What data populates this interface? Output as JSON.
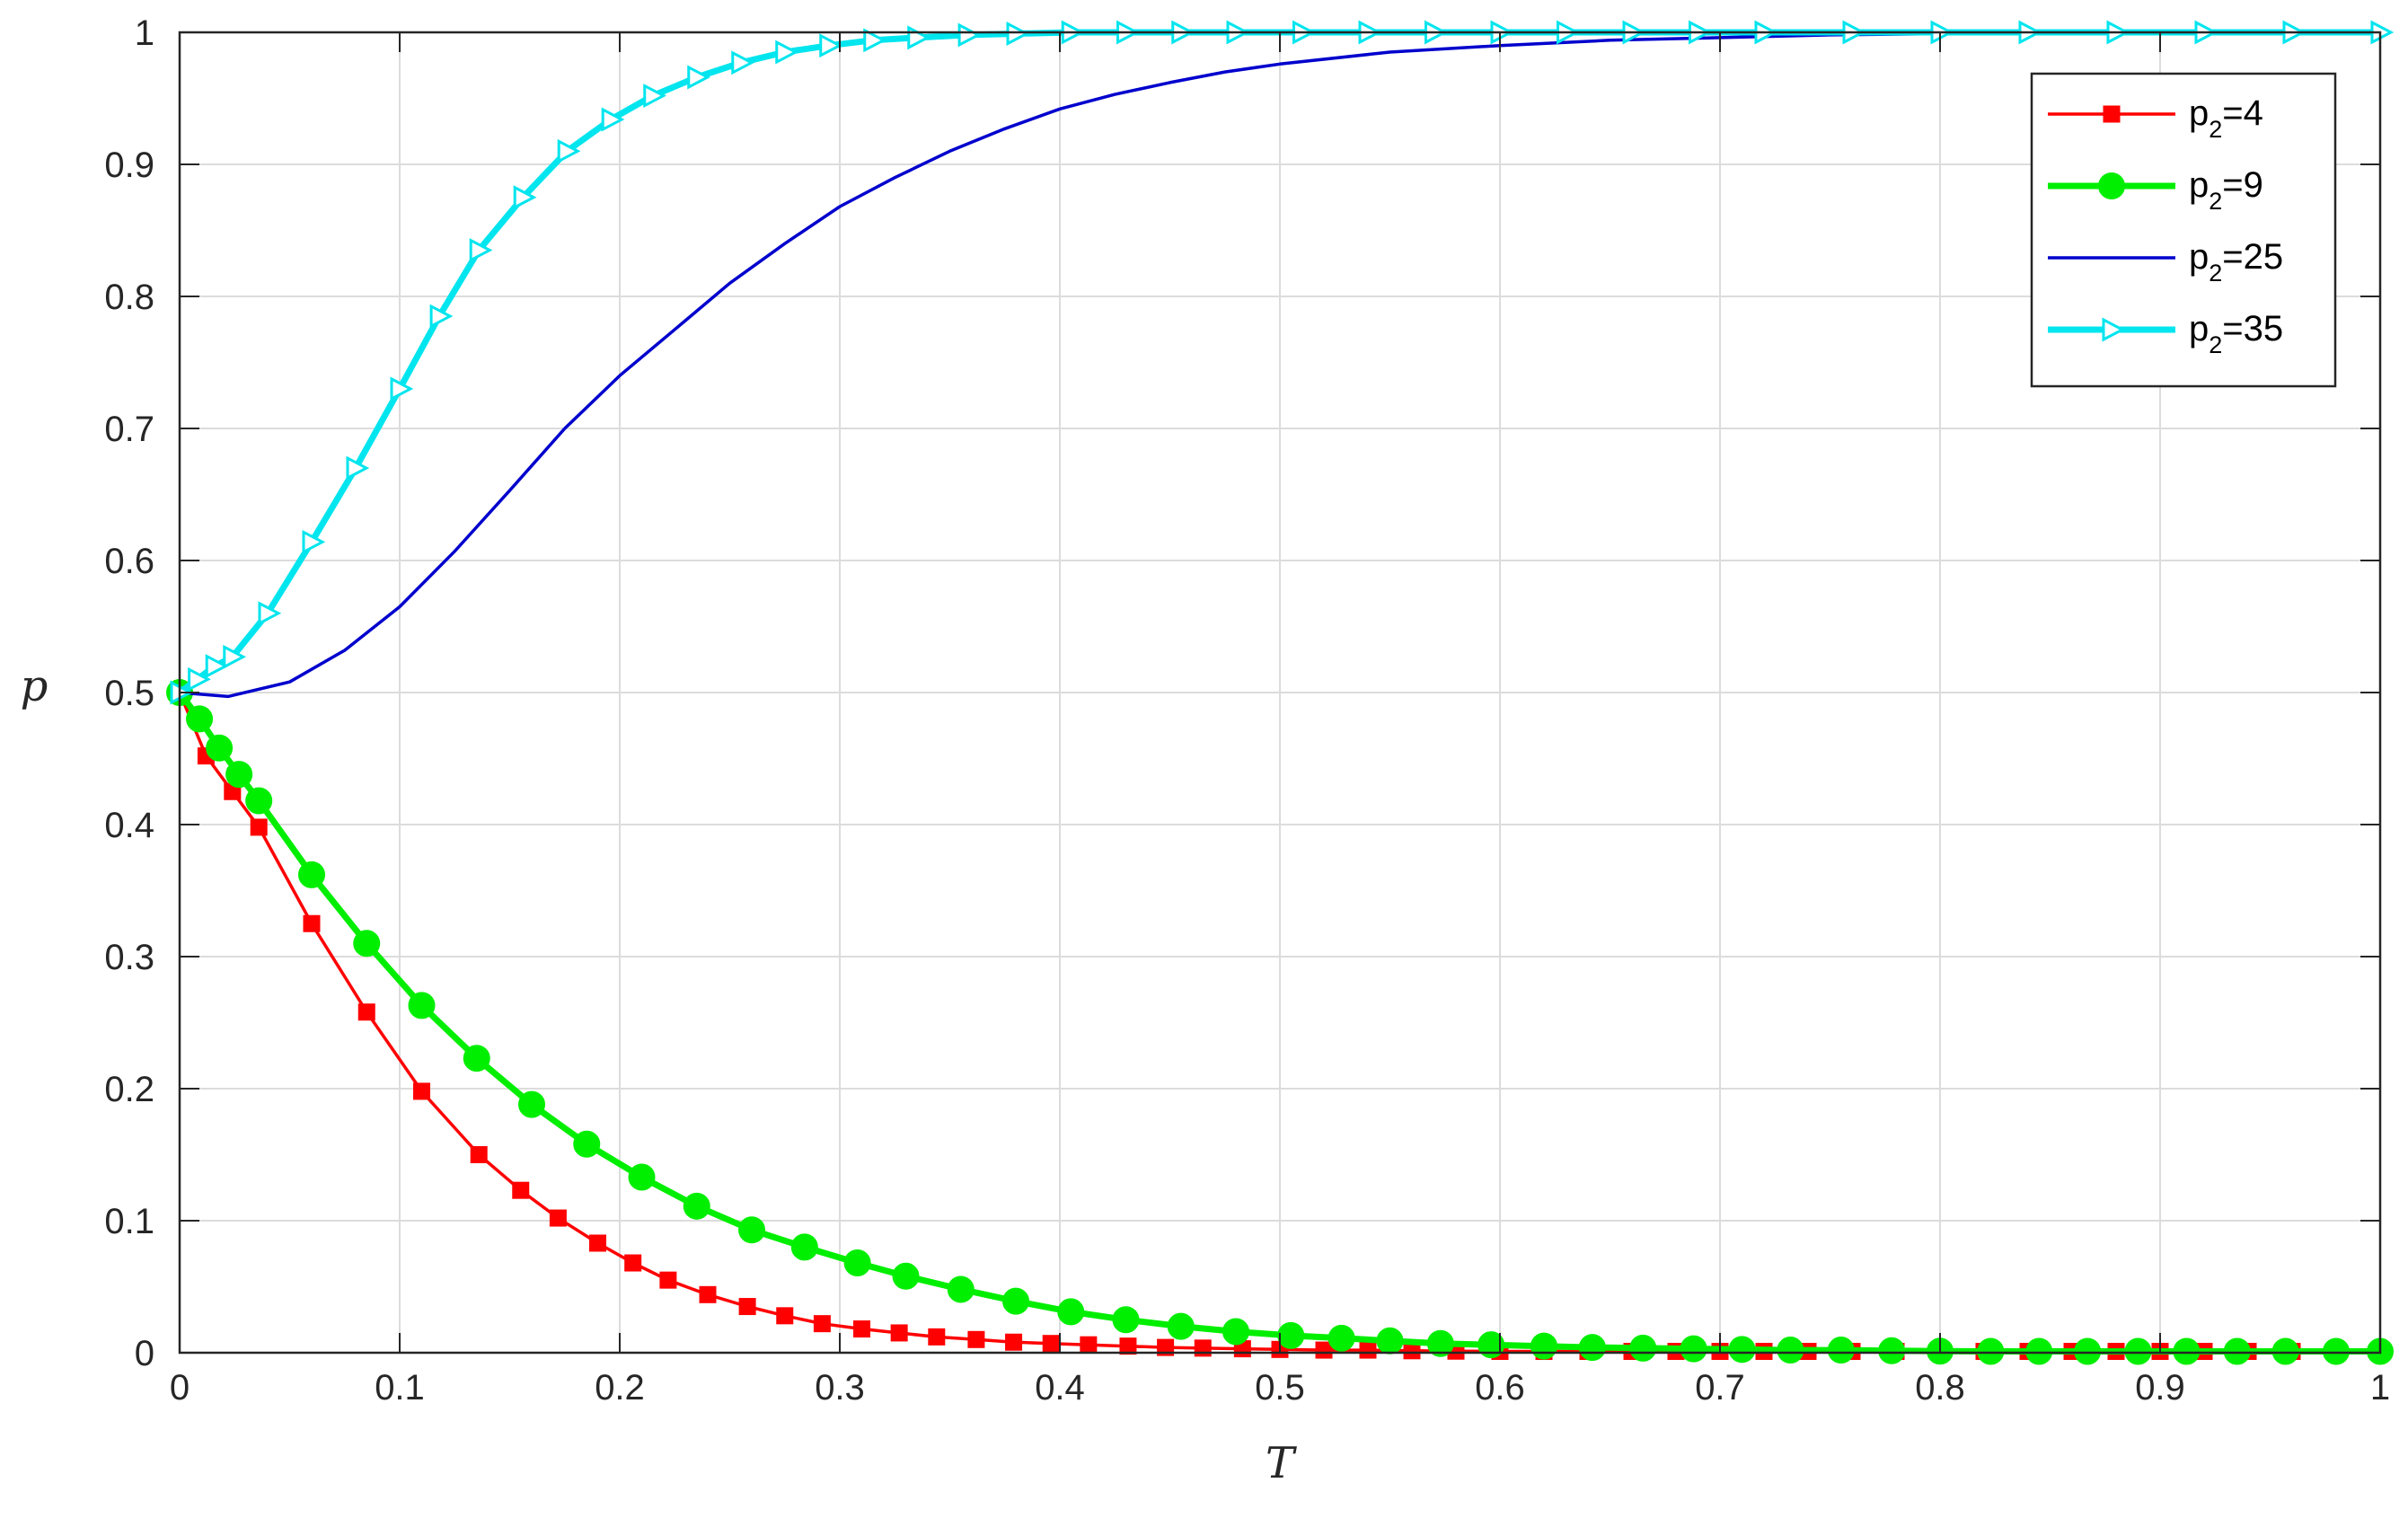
{
  "chart_data": {
    "type": "line",
    "title": "",
    "xlabel": "T",
    "ylabel": "p",
    "xlim": [
      0,
      1
    ],
    "ylim": [
      0,
      1
    ],
    "grid": true,
    "legend_position": "top-right",
    "x_ticks": [
      "0",
      "0.1",
      "0.2",
      "0.3",
      "0.4",
      "0.5",
      "0.6",
      "0.7",
      "0.8",
      "0.9",
      "1"
    ],
    "y_ticks": [
      "0",
      "0.1",
      "0.2",
      "0.3",
      "0.4",
      "0.5",
      "0.6",
      "0.7",
      "0.8",
      "0.9",
      "1"
    ],
    "series": [
      {
        "name_main": "p",
        "name_sub": "2",
        "name_rest": "=4",
        "color": "#ff0000",
        "marker": "square",
        "line_width": "thin",
        "x": [
          0,
          0.012,
          0.024,
          0.036,
          0.06,
          0.085,
          0.11,
          0.136,
          0.155,
          0.172,
          0.19,
          0.206,
          0.222,
          0.24,
          0.258,
          0.275,
          0.292,
          0.31,
          0.327,
          0.344,
          0.362,
          0.379,
          0.396,
          0.413,
          0.431,
          0.448,
          0.465,
          0.483,
          0.5,
          0.52,
          0.54,
          0.56,
          0.58,
          0.6,
          0.62,
          0.64,
          0.66,
          0.68,
          0.7,
          0.72,
          0.74,
          0.76,
          0.78,
          0.8,
          0.82,
          0.84,
          0.86,
          0.88,
          0.9,
          0.92,
          0.94,
          0.96,
          0.98,
          1
        ],
        "y": [
          0.5,
          0.452,
          0.425,
          0.398,
          0.325,
          0.258,
          0.198,
          0.15,
          0.123,
          0.102,
          0.083,
          0.068,
          0.055,
          0.044,
          0.035,
          0.028,
          0.022,
          0.018,
          0.015,
          0.012,
          0.01,
          0.008,
          0.007,
          0.006,
          0.005,
          0.004,
          0.0035,
          0.003,
          0.0025,
          0.002,
          0.002,
          0.0015,
          0.0012,
          0.001,
          0.001,
          0.001,
          0.001,
          0.001,
          0.001,
          0.001,
          0.001,
          0.001,
          0.001,
          0.001,
          0.001,
          0.001,
          0.001,
          0.001,
          0.001,
          0.001,
          0.001,
          0.001,
          0.001,
          0.001
        ]
      },
      {
        "name_main": "p",
        "name_sub": "2",
        "name_rest": "=9",
        "color": "#00ee00",
        "marker": "circle",
        "line_width": "thick",
        "x": [
          0,
          0.009,
          0.018,
          0.027,
          0.036,
          0.06,
          0.085,
          0.11,
          0.135,
          0.16,
          0.185,
          0.21,
          0.235,
          0.26,
          0.284,
          0.308,
          0.33,
          0.355,
          0.38,
          0.405,
          0.43,
          0.455,
          0.48,
          0.505,
          0.528,
          0.55,
          0.573,
          0.596,
          0.62,
          0.642,
          0.665,
          0.688,
          0.71,
          0.732,
          0.755,
          0.778,
          0.8,
          0.823,
          0.845,
          0.867,
          0.89,
          0.912,
          0.935,
          0.957,
          0.98,
          1
        ],
        "y": [
          0.5,
          0.48,
          0.458,
          0.438,
          0.418,
          0.362,
          0.31,
          0.263,
          0.223,
          0.188,
          0.158,
          0.133,
          0.111,
          0.093,
          0.08,
          0.068,
          0.058,
          0.048,
          0.039,
          0.031,
          0.025,
          0.02,
          0.016,
          0.013,
          0.011,
          0.009,
          0.007,
          0.006,
          0.005,
          0.004,
          0.0035,
          0.003,
          0.0025,
          0.002,
          0.002,
          0.0015,
          0.0012,
          0.001,
          0.001,
          0.001,
          0.001,
          0.001,
          0.001,
          0.001,
          0.001,
          0.001
        ]
      },
      {
        "name_main": "p",
        "name_sub": "2",
        "name_rest": "=25",
        "color": "#0000cd",
        "marker": "none",
        "line_width": "thin",
        "x": [
          0,
          0.022,
          0.05,
          0.075,
          0.1,
          0.125,
          0.15,
          0.175,
          0.2,
          0.225,
          0.25,
          0.275,
          0.3,
          0.325,
          0.35,
          0.375,
          0.4,
          0.425,
          0.45,
          0.475,
          0.5,
          0.55,
          0.6,
          0.65,
          0.7,
          0.75,
          0.8,
          0.85,
          0.9,
          0.95,
          1
        ],
        "y": [
          0.5,
          0.497,
          0.508,
          0.532,
          0.565,
          0.607,
          0.653,
          0.7,
          0.74,
          0.775,
          0.81,
          0.84,
          0.868,
          0.89,
          0.91,
          0.927,
          0.942,
          0.953,
          0.962,
          0.97,
          0.976,
          0.985,
          0.99,
          0.994,
          0.996,
          0.998,
          0.999,
          1,
          1,
          1,
          1
        ]
      },
      {
        "name_main": "p",
        "name_sub": "2",
        "name_rest": "=35",
        "color": "#00e5ee",
        "marker": "triangle-right",
        "line_width": "thick",
        "x": [
          0,
          0.008,
          0.016,
          0.024,
          0.04,
          0.06,
          0.08,
          0.1,
          0.118,
          0.136,
          0.156,
          0.176,
          0.196,
          0.215,
          0.235,
          0.255,
          0.275,
          0.295,
          0.315,
          0.335,
          0.358,
          0.38,
          0.405,
          0.43,
          0.455,
          0.48,
          0.51,
          0.54,
          0.57,
          0.6,
          0.63,
          0.66,
          0.69,
          0.72,
          0.76,
          0.8,
          0.84,
          0.88,
          0.92,
          0.96,
          1
        ],
        "y": [
          0.5,
          0.51,
          0.52,
          0.527,
          0.56,
          0.614,
          0.67,
          0.73,
          0.785,
          0.835,
          0.875,
          0.91,
          0.934,
          0.952,
          0.966,
          0.977,
          0.985,
          0.99,
          0.994,
          0.996,
          0.998,
          0.999,
          1,
          1,
          1,
          1,
          1,
          1,
          1,
          1,
          1,
          1,
          1,
          1,
          1,
          1,
          1,
          1,
          1,
          1,
          1
        ]
      }
    ]
  }
}
